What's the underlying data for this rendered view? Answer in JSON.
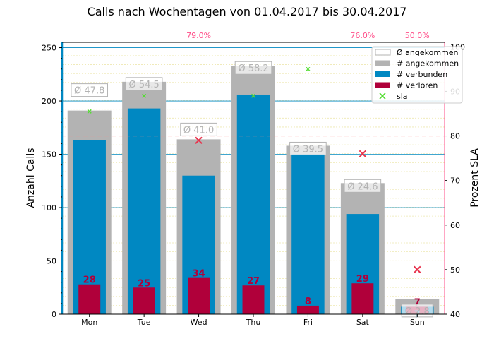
{
  "chart_data": {
    "type": "bar",
    "title": "Calls nach Wochentagen von 01.04.2017 bis 30.04.2017",
    "ylabel": "Anzahl Calls",
    "y2label": "Prozent SLA",
    "categories": [
      "Mon",
      "Tue",
      "Wed",
      "Thu",
      "Fri",
      "Sat",
      "Sun"
    ],
    "ylim": [
      0,
      255
    ],
    "y2lim": [
      40,
      101
    ],
    "yticks": [
      "0",
      "50",
      "100",
      "150",
      "200",
      "250"
    ],
    "y2ticks": [
      "40",
      "50",
      "60",
      "70",
      "80",
      "90",
      "100"
    ],
    "sla_target": 80,
    "series": [
      {
        "name": "# angekommen",
        "color": "#b3b3b3",
        "values": [
          191,
          218,
          164,
          233,
          158,
          123,
          14
        ]
      },
      {
        "name": "# verbunden",
        "color": "#0088c2",
        "values": [
          163,
          193,
          130,
          206,
          150,
          94,
          7
        ]
      },
      {
        "name": "# verloren",
        "color": "#b0003a",
        "values": [
          28,
          25,
          34,
          27,
          8,
          29,
          7
        ]
      },
      {
        "name": "sla",
        "color": "#55dd33",
        "values": [
          85.5,
          89,
          79.0,
          89,
          95,
          76.0,
          50.0
        ]
      }
    ],
    "avg_name": "Ø angekommen",
    "avg_labels": [
      "Ø 47.8",
      "Ø 54.5",
      "Ø 41.0",
      "Ø 58.2",
      "Ø 39.5",
      "Ø 24.6",
      "Ø 2.8"
    ],
    "sla_top_labels": [
      "",
      "",
      "79.0%",
      "",
      "",
      "76.0%",
      "50.0%"
    ],
    "sla_missed": [
      false,
      false,
      true,
      false,
      false,
      true,
      true
    ]
  }
}
